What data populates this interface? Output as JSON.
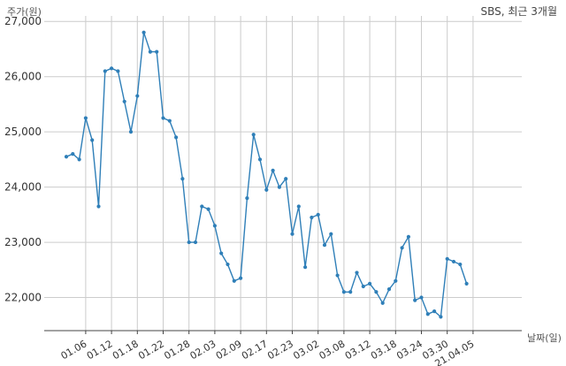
{
  "chart_data": {
    "type": "line",
    "title": "SBS, 최근 3개월",
    "ylabel": "주가(원)",
    "xlabel": "날짜(일)",
    "ylim": [
      21400,
      27100
    ],
    "y_ticks": [
      22000,
      23000,
      24000,
      25000,
      26000,
      27000
    ],
    "y_tick_labels": [
      "22,000",
      "23,000",
      "24,000",
      "25,000",
      "26,000",
      "27,000"
    ],
    "x_tick_labels": [
      "01.06",
      "01.12",
      "01.18",
      "01.22",
      "01.28",
      "02.03",
      "02.09",
      "02.17",
      "02.23",
      "03.02",
      "03.08",
      "03.12",
      "03.18",
      "03.24",
      "03.30",
      "21.04.05"
    ],
    "x_tick_index": [
      3,
      7,
      11,
      15,
      19,
      23,
      27,
      31,
      35,
      39,
      43,
      47,
      51,
      55,
      59,
      63
    ],
    "grid": true,
    "color": "#2f7fb8",
    "values": [
      24550,
      24600,
      24500,
      25250,
      24850,
      23650,
      26100,
      26150,
      26100,
      25550,
      25000,
      25650,
      26800,
      26450,
      26450,
      25250,
      25200,
      24900,
      24150,
      23000,
      23000,
      23650,
      23600,
      23300,
      22800,
      22600,
      22300,
      22350,
      23800,
      24950,
      24500,
      23950,
      24300,
      24000,
      24150,
      23150,
      23650,
      22550,
      23450,
      23500,
      22950,
      23150,
      22400,
      22100,
      22100,
      22450,
      22200,
      22250,
      22100,
      21900,
      22150,
      22300,
      22900,
      23100,
      21950,
      22000,
      21700,
      21750,
      21650,
      22700,
      22650,
      22600,
      22250
    ]
  }
}
